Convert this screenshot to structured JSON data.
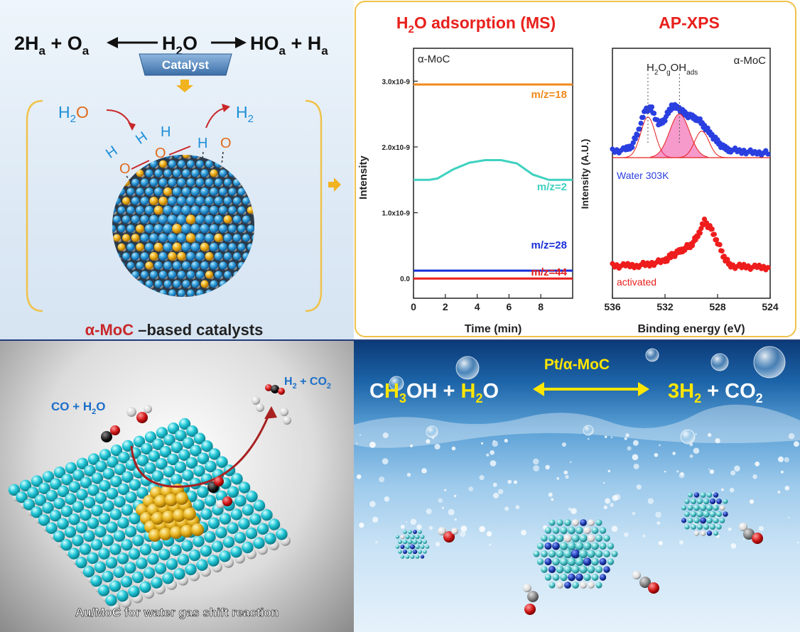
{
  "top_left": {
    "eq_left": "2H",
    "eq_left_sub": "a",
    "eq_plus1": " + O",
    "eq_plus1_sub": "a",
    "eq_mid": "H",
    "eq_mid_sub": "2",
    "eq_mid_o": "O",
    "eq_right": "HO",
    "eq_right_sub": "a",
    "eq_right2": " + H",
    "eq_right2_sub": "a",
    "catalyst_label": "Catalyst",
    "h2o_h": "H",
    "h2o_sub": "2",
    "h2o_o": "O",
    "h2_h": "H",
    "h2_sub": "2",
    "atom_h": "H",
    "atom_o": "O",
    "caption_alpha": "α-MoC",
    "caption_rest": " –based catalysts"
  },
  "top_right": {
    "ms_title_pre": "H",
    "ms_title_sub": "2",
    "ms_title_post": "O adsorption (MS)",
    "xps_title": "AP-XPS",
    "ms_panel_label": "α-MoC",
    "xps_panel_label": "α-MoC",
    "xps_peak_label1": "H",
    "xps_peak_sub1": "2",
    "xps_peak_label2": "O",
    "xps_peak_sub2": "g",
    "xps_peak_label3": "OH",
    "xps_peak_sub3": "ads",
    "ms_ylabel": "Intensity",
    "xps_ylabel": "Intensity (A.U.)",
    "ms_xlabel": "Time (min)",
    "xps_xlabel": "Binding energy (eV)",
    "water_label": "Water 303K",
    "activated_label": "activated"
  },
  "bottom_left": {
    "reactants": "CO + H",
    "reactants_sub": "2",
    "reactants_o": "O",
    "products": "H",
    "products_sub": "2",
    "products_mid": " + CO",
    "products_sub2": "2",
    "caption": "Au/MoC for water gas shift reaction"
  },
  "bottom_right": {
    "catalyst_label": "Pt/α-MoC",
    "eq_c": "C",
    "eq_h3": "H",
    "eq_sub3": "3",
    "eq_oh": "OH",
    "eq_plus": " + ",
    "eq_h2o_h": "H",
    "eq_h2o_sub": "2",
    "eq_h2o_o": "O",
    "eq_prod_h": "3H",
    "eq_prod_sub": "2",
    "eq_prod_plus": " + CO",
    "eq_prod_sub2": "2"
  },
  "chart_data": [
    {
      "type": "line",
      "title": "H2O adsorption (MS)",
      "xlabel": "Time (min)",
      "ylabel": "Intensity",
      "xlim": [
        0,
        10
      ],
      "ylim": [
        -3e-10,
        3.5e-09
      ],
      "xticks": [
        "0",
        "2",
        "4",
        "6",
        "8"
      ],
      "yticks": [
        "0.0",
        "1.0x10-9",
        "2.0x10-9",
        "3.0x10-9"
      ],
      "series": [
        {
          "name": "m/z=18",
          "color": "#f08a1c",
          "x": [
            0,
            10
          ],
          "y": [
            2.95e-09,
            2.95e-09
          ]
        },
        {
          "name": "m/z=2",
          "color": "#3fd1c0",
          "x": [
            0,
            1,
            1.5,
            2.5,
            3.5,
            4.5,
            5.5,
            6.5,
            7.5,
            8.5,
            10
          ],
          "y": [
            1.5e-09,
            1.5e-09,
            1.52e-09,
            1.66e-09,
            1.76e-09,
            1.8e-09,
            1.8e-09,
            1.75e-09,
            1.58e-09,
            1.5e-09,
            1.5e-09
          ]
        },
        {
          "name": "m/z=28",
          "color": "#1a2fd8",
          "x": [
            0,
            10
          ],
          "y": [
            1.2e-10,
            1.2e-10
          ]
        },
        {
          "name": "m/z=44",
          "color": "#e8201c",
          "x": [
            0,
            10
          ],
          "y": [
            0.0,
            0.0
          ]
        }
      ]
    },
    {
      "type": "scatter",
      "title": "AP-XPS",
      "xlabel": "Binding energy (eV)",
      "ylabel": "Intensity (A.U.)",
      "xlim": [
        536,
        524
      ],
      "xticks": [
        "536",
        "532",
        "528",
        "524"
      ],
      "series": [
        {
          "name": "Water 303K",
          "color": "#2a3fe0",
          "x": [
            536,
            535,
            534.5,
            534,
            533.5,
            533,
            532.5,
            532,
            531.5,
            531,
            530.5,
            530,
            529.5,
            529,
            528.5,
            528,
            527.5,
            527,
            526,
            525,
            524
          ],
          "y": [
            0.08,
            0.1,
            0.16,
            0.35,
            0.62,
            0.62,
            0.42,
            0.5,
            0.66,
            0.64,
            0.56,
            0.52,
            0.5,
            0.4,
            0.3,
            0.2,
            0.12,
            0.1,
            0.08,
            0.06,
            0.06
          ]
        },
        {
          "name": "activated",
          "color": "#ee1c1c",
          "x": [
            536,
            535,
            534,
            533,
            532,
            531.5,
            531,
            530.5,
            530,
            529.5,
            529,
            528.5,
            528,
            527.5,
            527,
            526,
            525,
            524
          ],
          "y": [
            0.05,
            0.05,
            0.06,
            0.08,
            0.12,
            0.18,
            0.22,
            0.28,
            0.32,
            0.44,
            0.62,
            0.52,
            0.36,
            0.16,
            0.05,
            0.04,
            0.03,
            0.03
          ]
        }
      ]
    }
  ]
}
